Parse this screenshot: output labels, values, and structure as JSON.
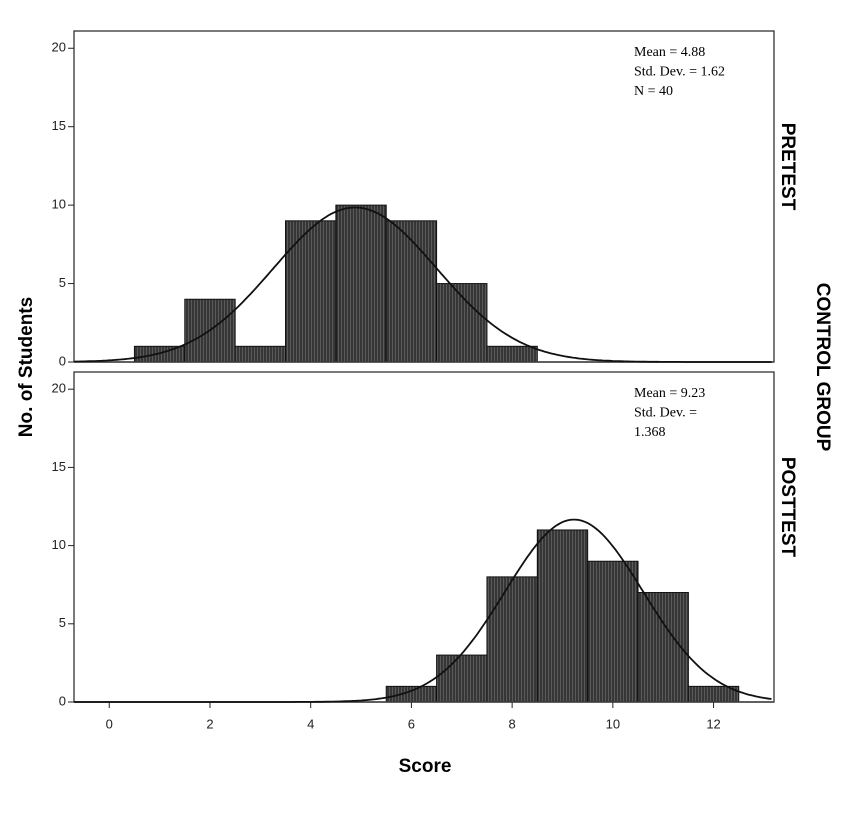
{
  "y_label": "No. of Students",
  "x_label": "Score",
  "group_label": "CONTROL GROUP",
  "chart_data": [
    {
      "type": "histogram",
      "panel_label": "PRETEST",
      "bins": [
        0.5,
        1.5,
        2.5,
        3.5,
        4.5,
        5.5,
        6.5,
        7.5,
        8.5
      ],
      "values": [
        1,
        4,
        1,
        9,
        10,
        9,
        5,
        1
      ],
      "color": "#3a3a3a",
      "mean": 4.88,
      "std_dev": 1.62,
      "annotation": [
        "Mean = 4.88",
        "Std. Dev. = 1.62",
        "N = 40"
      ],
      "xlim": [
        -0.7,
        13.2
      ],
      "ylim": [
        0,
        21.1
      ],
      "yticks": [
        0,
        5,
        10,
        15,
        20
      ]
    },
    {
      "type": "histogram",
      "panel_label": "POSTTEST",
      "bins": [
        5.5,
        6.5,
        7.5,
        8.5,
        9.5,
        10.5,
        11.5,
        12.5
      ],
      "values": [
        1,
        3,
        8,
        11,
        9,
        7,
        1
      ],
      "color": "#3a3a3a",
      "mean": 9.23,
      "std_dev": 1.368,
      "annotation": [
        "Mean = 9.23",
        "Std. Dev. =",
        "1.368"
      ],
      "xlim": [
        -0.7,
        13.2
      ],
      "ylim": [
        0,
        21.1
      ],
      "yticks": [
        0,
        5,
        10,
        15,
        20
      ],
      "xticks": [
        0,
        2,
        4,
        6,
        8,
        10,
        12
      ]
    }
  ]
}
